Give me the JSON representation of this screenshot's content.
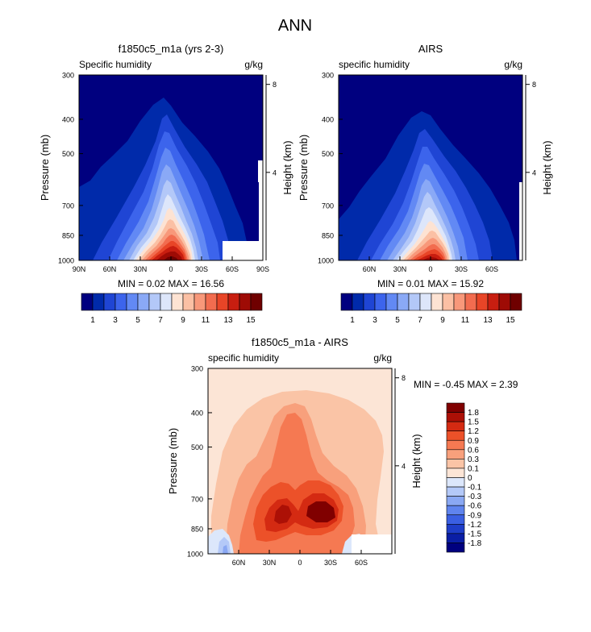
{
  "title": "ANN",
  "panels": [
    {
      "id": "model",
      "title": "f1850c5_m1a (yrs 2-3)",
      "left_label": "Specific humidity",
      "right_label": "g/kg",
      "ylabel": "Pressure (mb)",
      "ylabel_right": "Height (km)",
      "stats": "MIN =  0.02  MAX =  16.56"
    },
    {
      "id": "obs",
      "title": "AIRS",
      "left_label": "specific humidity",
      "right_label": "g/kg",
      "ylabel": "Pressure (mb)",
      "ylabel_right": "Height (km)",
      "stats": "MIN =  0.01  MAX =  15.92"
    },
    {
      "id": "diff",
      "title": "f1850c5_m1a - AIRS",
      "left_label": "specific humidity",
      "right_label": "g/kg",
      "ylabel": "Pressure (mb)",
      "ylabel_right": "Height (km)",
      "stats": "MIN =  -0.45  MAX =  2.39"
    }
  ],
  "chart_data": [
    {
      "type": "heatmap",
      "subtype": "filled-contour",
      "title": "f1850c5_m1a (yrs 2-3)",
      "variable": "Specific humidity",
      "units": "g/kg",
      "xlabel": "",
      "ylabel": "Pressure (mb)",
      "ylabel_right": "Height (km)",
      "x_ticks": [
        "90N",
        "60N",
        "30N",
        "0",
        "30S",
        "60S",
        "90S"
      ],
      "x_tick_values": [
        90,
        60,
        30,
        0,
        -30,
        -60,
        -90
      ],
      "xlim": [
        90,
        -90
      ],
      "y_ticks": [
        300,
        400,
        500,
        700,
        850,
        1000
      ],
      "ylim": [
        1000,
        300
      ],
      "height_ticks": [
        8,
        4
      ],
      "min": 0.02,
      "max": 16.56,
      "peak_location": {
        "lat": 3,
        "pressure": 1000
      },
      "no_data_region": "lat 50S-90S below 850 mb",
      "colorbar_labels": [
        "1",
        "3",
        "5",
        "7",
        "9",
        "11",
        "13",
        "15"
      ],
      "contour_levels": [
        1,
        2,
        3,
        4,
        5,
        6,
        7,
        8,
        9,
        10,
        11,
        12,
        13,
        14,
        15
      ]
    },
    {
      "type": "heatmap",
      "subtype": "filled-contour",
      "title": "AIRS",
      "variable": "specific humidity",
      "units": "g/kg",
      "xlabel": "",
      "ylabel": "Pressure (mb)",
      "ylabel_right": "Height (km)",
      "x_ticks": [
        "60N",
        "30N",
        "0",
        "30S",
        "60S"
      ],
      "x_tick_values": [
        60,
        30,
        0,
        -30,
        -60
      ],
      "xlim": [
        90,
        -90
      ],
      "y_ticks": [
        300,
        400,
        500,
        700,
        850,
        1000
      ],
      "ylim": [
        1000,
        300
      ],
      "height_ticks": [
        8,
        4
      ],
      "min": 0.01,
      "max": 15.92,
      "peak_location": {
        "lat": 5,
        "pressure": 1000
      },
      "colorbar_labels": [
        "1",
        "3",
        "5",
        "7",
        "9",
        "11",
        "13",
        "15"
      ],
      "contour_levels": [
        1,
        2,
        3,
        4,
        5,
        6,
        7,
        8,
        9,
        10,
        11,
        12,
        13,
        14,
        15
      ]
    },
    {
      "type": "heatmap",
      "subtype": "filled-contour",
      "title": "f1850c5_m1a - AIRS",
      "variable": "specific humidity",
      "units": "g/kg",
      "xlabel": "",
      "ylabel": "Pressure (mb)",
      "ylabel_right": "Height (km)",
      "x_ticks": [
        "60N",
        "30N",
        "0",
        "30S",
        "60S"
      ],
      "x_tick_values": [
        60,
        30,
        0,
        -30,
        -60
      ],
      "xlim": [
        90,
        -90
      ],
      "y_ticks": [
        300,
        400,
        500,
        700,
        850,
        1000
      ],
      "ylim": [
        1000,
        300
      ],
      "height_ticks": [
        8,
        4
      ],
      "min": -0.45,
      "max": 2.39,
      "peaks": [
        {
          "lat": 20,
          "pressure": 850,
          "value": 2.0
        },
        {
          "lat": -12,
          "pressure": 850,
          "value": 2.2
        }
      ],
      "negative_regions": [
        {
          "lat": 75,
          "pressure": 980,
          "value": -0.3
        },
        {
          "lat": -50,
          "pressure": 980,
          "value": -0.2
        }
      ],
      "no_data_region": "lat 45S-90S below 900 mb",
      "colorbar_labels": [
        "1.8",
        "1.5",
        "1.2",
        "0.9",
        "0.6",
        "0.3",
        "0.1",
        "0",
        "-0.1",
        "-0.3",
        "-0.6",
        "-0.9",
        "-1.2",
        "-1.5",
        "-1.8"
      ],
      "contour_levels": [
        -1.8,
        -1.5,
        -1.2,
        -0.9,
        -0.6,
        -0.3,
        -0.1,
        0,
        0.1,
        0.3,
        0.6,
        0.9,
        1.2,
        1.5,
        1.8
      ]
    }
  ],
  "colors": {
    "seq": [
      "#00007f",
      "#002aaa",
      "#1f45d4",
      "#3c64ec",
      "#6289f4",
      "#8aa9f6",
      "#b3c8f8",
      "#dde6fa",
      "#fde3d3",
      "#fbc0a4",
      "#f8987a",
      "#f26c4f",
      "#e84527",
      "#c81e10",
      "#9e0b05",
      "#6f0000"
    ],
    "div": [
      "#00007f",
      "#0a1ea5",
      "#1e3dc8",
      "#3a5fe2",
      "#5f84ee",
      "#8aa8f3",
      "#b4c9f8",
      "#dce7fb",
      "#fce5d6",
      "#fac4a6",
      "#f8a07c",
      "#f57952",
      "#ec5129",
      "#d42a12",
      "#ac1006",
      "#800000"
    ]
  }
}
